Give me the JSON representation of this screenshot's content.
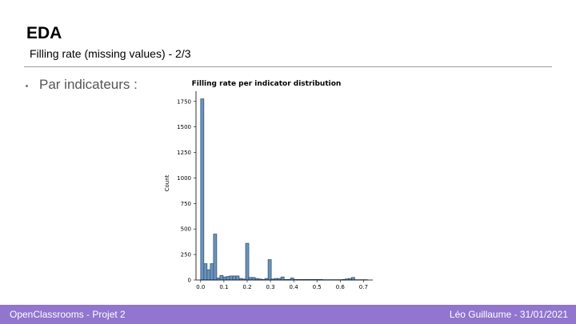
{
  "slide": {
    "title": "EDA",
    "subtitle": "Filling rate (missing values) - 2/3",
    "bullet": "Par indicateurs :"
  },
  "footer": {
    "left": "OpenClassrooms - Projet 2",
    "right": "Léo Guillaume - 31/01/2021"
  },
  "colors": {
    "bar_fill": "#6a93be",
    "bar_stroke": "#2b4a6a",
    "footer_bg": "#9175cf"
  },
  "chart_data": {
    "type": "bar",
    "title": "Filling rate per indicator distribution",
    "xlabel": "",
    "ylabel": "Count",
    "xlim": [
      -0.02,
      0.74
    ],
    "ylim": [
      0,
      1850
    ],
    "xticks": [
      0.0,
      0.1,
      0.2,
      0.3,
      0.4,
      0.5,
      0.6,
      0.7
    ],
    "yticks": [
      0,
      250,
      500,
      750,
      1000,
      1250,
      1500,
      1750
    ],
    "grid": false,
    "bin_width": 0.0138,
    "bin_starts": [
      0.0,
      0.0138,
      0.0276,
      0.0414,
      0.0552,
      0.069,
      0.0828,
      0.0966,
      0.1104,
      0.1242,
      0.138,
      0.1518,
      0.1656,
      0.1794,
      0.1932,
      0.207,
      0.2208,
      0.2346,
      0.2484,
      0.2622,
      0.276,
      0.2898,
      0.3036,
      0.3174,
      0.3312,
      0.345,
      0.3588,
      0.3726,
      0.3864,
      0.4002,
      0.414,
      0.4278,
      0.4416,
      0.4554,
      0.4692,
      0.483,
      0.4968,
      0.5106,
      0.5244,
      0.5382,
      0.552,
      0.5658,
      0.5796,
      0.5934,
      0.6072,
      0.621,
      0.6348,
      0.6486,
      0.6624,
      0.6762,
      0.69,
      0.7038
    ],
    "values": [
      1775,
      160,
      100,
      160,
      450,
      20,
      45,
      30,
      35,
      40,
      40,
      40,
      15,
      10,
      360,
      25,
      25,
      15,
      10,
      5,
      15,
      200,
      10,
      15,
      15,
      30,
      5,
      5,
      20,
      5,
      5,
      5,
      5,
      5,
      5,
      5,
      5,
      5,
      3,
      3,
      3,
      3,
      3,
      3,
      5,
      10,
      15,
      25,
      3,
      3,
      3,
      3
    ]
  }
}
